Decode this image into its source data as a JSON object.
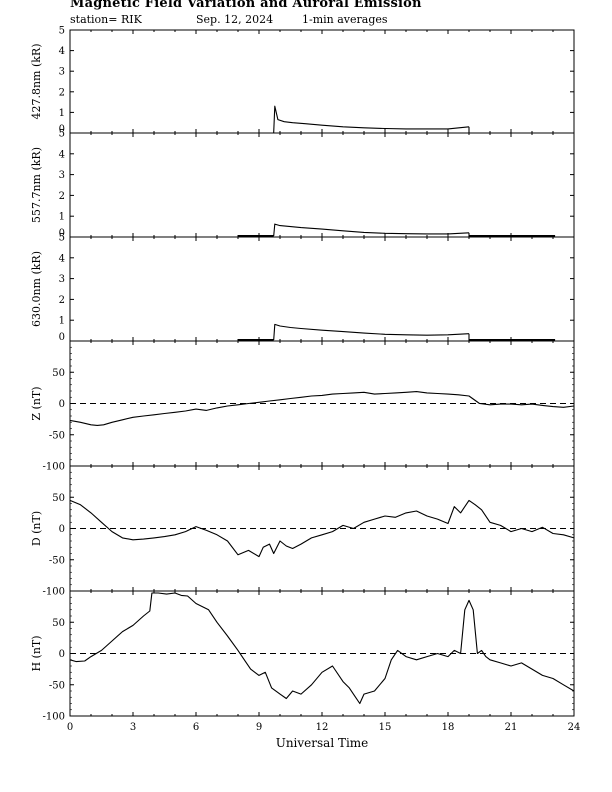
{
  "header": {
    "title": "Magnetic Field Variation and Auroral Emission",
    "station": "station= RIK",
    "date": "Sep. 12, 2024",
    "averaging": "1-min averages"
  },
  "chart_data": [
    {
      "type": "line",
      "panel": "427.8nm",
      "ylabel": "427.8nm (kR)",
      "ylim": [
        0,
        5
      ],
      "yticks": [
        0,
        1,
        2,
        3,
        4,
        5
      ],
      "xlim": [
        0,
        24
      ],
      "x": [
        9.7,
        9.75,
        9.9,
        10.2,
        10.6,
        11.2,
        12.0,
        13.0,
        14.0,
        15.0,
        16.0,
        17.0,
        18.0,
        19.0
      ],
      "values": [
        0.0,
        1.3,
        0.65,
        0.55,
        0.5,
        0.45,
        0.38,
        0.3,
        0.25,
        0.22,
        0.2,
        0.2,
        0.2,
        0.3
      ],
      "end_drop_x": 19.0
    },
    {
      "type": "line",
      "panel": "557.7nm",
      "ylabel": "557.7nm (kR)",
      "ylim": [
        0,
        5
      ],
      "yticks": [
        0,
        1,
        2,
        3,
        4,
        5
      ],
      "xlim": [
        0,
        24
      ],
      "baseline": [
        [
          8.0,
          9.7,
          0.05
        ],
        [
          19.0,
          23.1,
          0.05
        ]
      ],
      "x": [
        9.7,
        9.75,
        10.0,
        10.5,
        11.0,
        12.0,
        13.0,
        14.0,
        15.0,
        16.0,
        17.0,
        18.0,
        19.0
      ],
      "values": [
        0.05,
        0.62,
        0.55,
        0.5,
        0.45,
        0.38,
        0.3,
        0.22,
        0.18,
        0.16,
        0.15,
        0.15,
        0.2
      ],
      "end_drop_x": 19.0
    },
    {
      "type": "line",
      "panel": "630.0nm",
      "ylabel": "630.0nm (kR)",
      "ylim": [
        0,
        5
      ],
      "yticks": [
        0,
        1,
        2,
        3,
        4,
        5
      ],
      "xlim": [
        0,
        24
      ],
      "baseline": [
        [
          8.0,
          9.7,
          0.05
        ],
        [
          19.0,
          23.1,
          0.05
        ]
      ],
      "x": [
        9.7,
        9.75,
        10.0,
        10.5,
        11.0,
        12.0,
        13.0,
        14.0,
        15.0,
        16.0,
        17.0,
        18.0,
        19.0
      ],
      "values": [
        0.05,
        0.8,
        0.72,
        0.65,
        0.6,
        0.52,
        0.45,
        0.38,
        0.32,
        0.3,
        0.28,
        0.3,
        0.35
      ],
      "end_drop_x": 19.0
    },
    {
      "type": "line",
      "panel": "Z",
      "ylabel": "Z (nT)",
      "ylim": [
        -100,
        100
      ],
      "yticks": [
        -100,
        -50,
        0,
        50
      ],
      "xlim": [
        0,
        24
      ],
      "zero_line": "dashed",
      "x": [
        0,
        0.5,
        1.0,
        1.3,
        1.6,
        2.0,
        2.5,
        3.0,
        3.5,
        4.0,
        4.5,
        5.0,
        5.5,
        6.0,
        6.5,
        7.0,
        7.5,
        8.0,
        8.5,
        9.0,
        9.5,
        10.0,
        10.5,
        11.0,
        11.5,
        12.0,
        12.5,
        13.0,
        13.5,
        14.0,
        14.5,
        15.0,
        15.5,
        16.0,
        16.5,
        17.0,
        17.5,
        18.0,
        18.5,
        19.0,
        19.5,
        20.0,
        20.5,
        21.0,
        21.5,
        22.0,
        22.5,
        23.0,
        23.5,
        24.0
      ],
      "values": [
        -27,
        -30,
        -34,
        -35,
        -34,
        -30,
        -26,
        -22,
        -20,
        -18,
        -16,
        -14,
        -12,
        -9,
        -11,
        -7,
        -4,
        -2,
        0,
        2,
        4,
        6,
        8,
        10,
        12,
        13,
        15,
        16,
        17,
        18,
        15,
        16,
        17,
        18,
        19,
        17,
        16,
        15,
        14,
        12,
        0,
        -2,
        -1,
        -1,
        -2,
        -1,
        -3,
        -5,
        -6,
        -4
      ]
    },
    {
      "type": "line",
      "panel": "D",
      "ylabel": "D (nT)",
      "ylim": [
        -100,
        100
      ],
      "yticks": [
        -100,
        -50,
        0,
        50
      ],
      "xlim": [
        0,
        24
      ],
      "zero_line": "dashed",
      "x": [
        0,
        0.5,
        1.0,
        1.5,
        2.0,
        2.5,
        3.0,
        3.5,
        4.0,
        4.5,
        5.0,
        5.5,
        6.0,
        6.5,
        7.0,
        7.5,
        8.0,
        8.5,
        9.0,
        9.2,
        9.5,
        9.7,
        10.0,
        10.3,
        10.6,
        11.0,
        11.5,
        12.0,
        12.5,
        13.0,
        13.5,
        14.0,
        14.5,
        15.0,
        15.5,
        16.0,
        16.5,
        17.0,
        17.5,
        18.0,
        18.3,
        18.6,
        19.0,
        19.3,
        19.6,
        20.0,
        20.5,
        21.0,
        21.5,
        22.0,
        22.5,
        23.0,
        23.5,
        24.0
      ],
      "values": [
        45,
        38,
        25,
        10,
        -5,
        -15,
        -18,
        -17,
        -15,
        -13,
        -10,
        -5,
        3,
        -3,
        -10,
        -20,
        -42,
        -35,
        -45,
        -30,
        -25,
        -40,
        -20,
        -28,
        -32,
        -25,
        -15,
        -10,
        -5,
        5,
        0,
        10,
        15,
        20,
        18,
        25,
        28,
        20,
        15,
        8,
        35,
        25,
        45,
        38,
        30,
        10,
        5,
        -5,
        0,
        -5,
        2,
        -8,
        -10,
        -15
      ]
    },
    {
      "type": "line",
      "panel": "H",
      "ylabel": "H (nT)",
      "ylim": [
        -100,
        100
      ],
      "yticks": [
        -100,
        -50,
        0,
        50
      ],
      "xlim": [
        0,
        24
      ],
      "zero_line": "dashed",
      "x": [
        0,
        0.3,
        0.7,
        1.0,
        1.5,
        2.0,
        2.5,
        3.0,
        3.5,
        3.8,
        3.9,
        4.2,
        4.6,
        5.0,
        5.3,
        5.6,
        6.0,
        6.3,
        6.6,
        7.0,
        7.5,
        8.0,
        8.3,
        8.6,
        9.0,
        9.3,
        9.6,
        10.0,
        10.3,
        10.6,
        11.0,
        11.5,
        12.0,
        12.5,
        13.0,
        13.3,
        13.6,
        13.8,
        14.0,
        14.5,
        15.0,
        15.3,
        15.6,
        16.0,
        16.5,
        17.0,
        17.5,
        18.0,
        18.3,
        18.6,
        18.8,
        19.0,
        19.2,
        19.4,
        19.6,
        19.8,
        20.0,
        20.5,
        21.0,
        21.5,
        22.0,
        22.5,
        23.0,
        23.5,
        24.0
      ],
      "values": [
        -10,
        -13,
        -12,
        -5,
        5,
        20,
        35,
        45,
        60,
        68,
        100,
        97,
        95,
        100,
        93,
        92,
        80,
        75,
        70,
        50,
        28,
        5,
        -10,
        -25,
        -35,
        -30,
        -55,
        -65,
        -72,
        -60,
        -65,
        -50,
        -30,
        -20,
        -45,
        -55,
        -70,
        -80,
        -65,
        -60,
        -40,
        -10,
        5,
        -5,
        -10,
        -5,
        0,
        -5,
        5,
        0,
        70,
        85,
        70,
        0,
        5,
        -5,
        -10,
        -15,
        -20,
        -15,
        -25,
        -35,
        -40,
        -50,
        -60
      ]
    }
  ],
  "x_axis": {
    "label": "Universal Time",
    "ticks": [
      "0",
      "3",
      "6",
      "9",
      "12",
      "15",
      "18",
      "21",
      "24"
    ]
  }
}
